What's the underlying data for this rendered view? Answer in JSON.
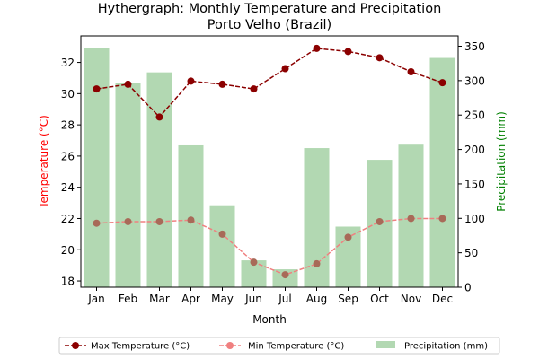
{
  "chart_data": {
    "type": "bar",
    "title": "Hythergraph: Monthly Temperature and Precipitation",
    "subtitle": "Porto Velho (Brazil)",
    "xlabel": "Month",
    "ylabel_left": "Temperature (°C)",
    "ylabel_right": "Precipitation (mm)",
    "categories": [
      "Jan",
      "Feb",
      "Mar",
      "Apr",
      "May",
      "Jun",
      "Jul",
      "Aug",
      "Sep",
      "Oct",
      "Nov",
      "Dec"
    ],
    "ylim_left": [
      17.6,
      33.7
    ],
    "ylim_right": [
      0,
      365
    ],
    "yticks_left": [
      "18",
      "20",
      "22",
      "24",
      "26",
      "28",
      "30",
      "32"
    ],
    "yticks_right": [
      "0",
      "50",
      "100",
      "150",
      "200",
      "250",
      "300",
      "350"
    ],
    "series": [
      {
        "name": "Max Temperature (°C)",
        "kind": "line",
        "axis": "left",
        "color": "#8b0000",
        "values": [
          30.3,
          30.6,
          28.5,
          30.8,
          30.6,
          30.3,
          31.6,
          32.9,
          32.7,
          32.3,
          31.4,
          30.7
        ]
      },
      {
        "name": "Min Temperature (°C)",
        "kind": "line",
        "axis": "left",
        "color": "#f08080",
        "marker_color": "#a86a58",
        "values": [
          21.7,
          21.8,
          21.8,
          21.9,
          21.0,
          19.2,
          18.4,
          19.1,
          20.8,
          21.8,
          22.0,
          22.0
        ]
      },
      {
        "name": "Precipitation (mm)",
        "kind": "bar",
        "axis": "right",
        "color": "#b2d8b2",
        "values": [
          348,
          296,
          312,
          206,
          119,
          39,
          26,
          202,
          88,
          185,
          207,
          333
        ]
      }
    ],
    "left_axis_color": "#ff0000",
    "right_axis_color": "#008000",
    "legend_position": "bottom-center",
    "grid": false
  }
}
